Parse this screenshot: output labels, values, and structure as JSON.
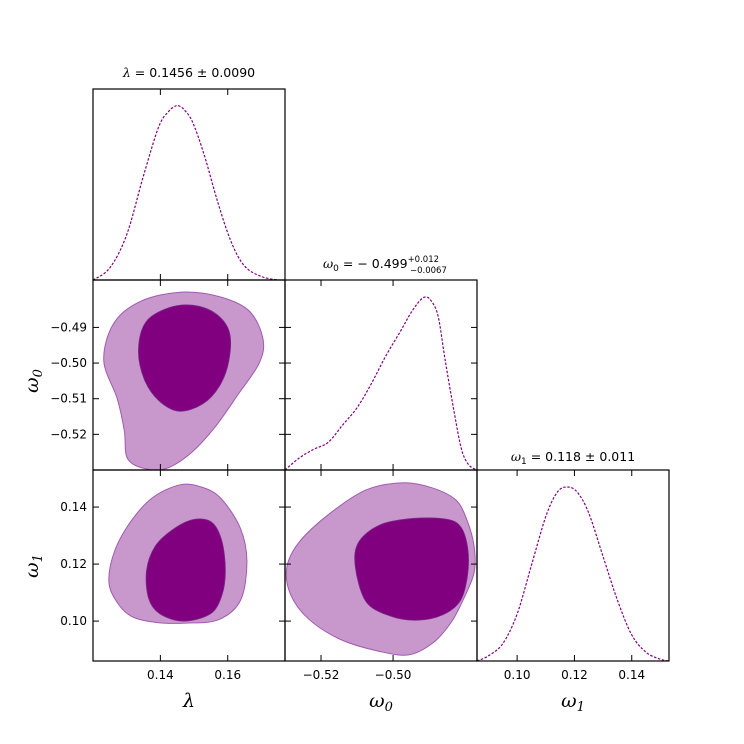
{
  "chart_data": {
    "type": "triangle-corner-plot",
    "parameters": [
      {
        "key": "lambda",
        "label": "λ",
        "range": [
          0.12,
          0.177
        ],
        "ticks": [
          0.14,
          0.16
        ],
        "tick_labels": [
          "0.14",
          "0.16"
        ]
      },
      {
        "key": "omega0",
        "label": "ω",
        "label_sub": "0",
        "range": [
          -0.53,
          -0.4767
        ],
        "ticks": [
          -0.49,
          -0.5,
          -0.51,
          -0.52
        ],
        "tick_labels": [
          "−0.49",
          "−0.50",
          "−0.51",
          "−0.52"
        ],
        "x_ticks": [
          -0.52,
          -0.5
        ],
        "x_tick_labels": [
          "−0.52",
          "−0.50"
        ]
      },
      {
        "key": "omega1",
        "label": "ω",
        "label_sub": "1",
        "range": [
          0.086,
          0.153
        ],
        "ticks": [
          0.14,
          0.12,
          0.1
        ],
        "tick_labels": [
          "0.14",
          "0.12",
          "0.10"
        ],
        "x_ticks": [
          0.1,
          0.12,
          0.14
        ],
        "x_tick_labels": [
          "0.10",
          "0.12",
          "0.14"
        ]
      }
    ],
    "titles": [
      {
        "prefix": "λ",
        "sub": "",
        "text": " = 0.1456 ± 0.0090",
        "sup": "",
        "lower": ""
      },
      {
        "prefix": "ω",
        "sub": "0",
        "text": " = − 0.499",
        "sup": "+0.012",
        "lower": "−0.0067"
      },
      {
        "prefix": "ω",
        "sub": "1",
        "text": " = 0.118 ± 0.011",
        "sup": "",
        "lower": ""
      }
    ],
    "marginals": [
      {
        "param": "lambda",
        "x": [
          0.12,
          0.125,
          0.13,
          0.135,
          0.1395,
          0.1425,
          0.1445,
          0.1456,
          0.147,
          0.1495,
          0.153,
          0.157,
          0.161,
          0.165,
          0.17,
          0.175,
          0.177
        ],
        "density": [
          0.0,
          0.07,
          0.26,
          0.6,
          0.88,
          0.97,
          1.0,
          1.0,
          0.98,
          0.91,
          0.72,
          0.45,
          0.22,
          0.08,
          0.02,
          0.0,
          0.0
        ]
      },
      {
        "param": "omega0",
        "x": [
          -0.53,
          -0.526,
          -0.522,
          -0.518,
          -0.514,
          -0.51,
          -0.506,
          -0.502,
          -0.498,
          -0.495,
          -0.4925,
          -0.491,
          -0.4895,
          -0.4875,
          -0.4855,
          -0.483,
          -0.481,
          -0.479,
          -0.4767
        ],
        "density": [
          0.0,
          0.07,
          0.12,
          0.16,
          0.26,
          0.36,
          0.5,
          0.66,
          0.8,
          0.91,
          0.98,
          1.0,
          0.98,
          0.89,
          0.63,
          0.33,
          0.12,
          0.03,
          0.0
        ]
      },
      {
        "param": "omega1",
        "x": [
          0.086,
          0.09,
          0.095,
          0.1,
          0.105,
          0.11,
          0.114,
          0.1175,
          0.121,
          0.125,
          0.13,
          0.135,
          0.14,
          0.145,
          0.15,
          0.153
        ],
        "density": [
          0.0,
          0.03,
          0.1,
          0.27,
          0.55,
          0.83,
          0.97,
          1.0,
          0.97,
          0.85,
          0.6,
          0.35,
          0.15,
          0.05,
          0.01,
          0.0
        ]
      }
    ],
    "contours": [
      {
        "x": "lambda",
        "y": "omega0",
        "outer_68": [
          [
            0.1232,
            -0.4993
          ],
          [
            0.1262,
            -0.4888
          ],
          [
            0.1343,
            -0.4826
          ],
          [
            0.1464,
            -0.4801
          ],
          [
            0.158,
            -0.4815
          ],
          [
            0.1665,
            -0.4855
          ],
          [
            0.1705,
            -0.4934
          ],
          [
            0.1693,
            -0.5001
          ],
          [
            0.1633,
            -0.5085
          ],
          [
            0.1562,
            -0.518
          ],
          [
            0.149,
            -0.5253
          ],
          [
            0.1417,
            -0.5296
          ],
          [
            0.1353,
            -0.5296
          ],
          [
            0.1302,
            -0.5267
          ],
          [
            0.1293,
            -0.519
          ],
          [
            0.1272,
            -0.51
          ],
          [
            0.1232,
            -0.4993
          ]
        ],
        "inner_68": [
          [
            0.1335,
            -0.4963
          ],
          [
            0.1357,
            -0.4885
          ],
          [
            0.1425,
            -0.4845
          ],
          [
            0.1498,
            -0.4838
          ],
          [
            0.1565,
            -0.4862
          ],
          [
            0.1605,
            -0.4914
          ],
          [
            0.1603,
            -0.4995
          ],
          [
            0.1575,
            -0.5065
          ],
          [
            0.1525,
            -0.5115
          ],
          [
            0.1455,
            -0.5135
          ],
          [
            0.1395,
            -0.5105
          ],
          [
            0.1352,
            -0.5045
          ],
          [
            0.1335,
            -0.4963
          ]
        ]
      },
      {
        "x": "lambda",
        "y": "omega1",
        "outer_95": [
          [
            0.1265,
            0.1248
          ],
          [
            0.1312,
            0.1349
          ],
          [
            0.1377,
            0.1433
          ],
          [
            0.1459,
            0.1478
          ],
          [
            0.1525,
            0.1469
          ],
          [
            0.158,
            0.143
          ],
          [
            0.1637,
            0.1327
          ],
          [
            0.1657,
            0.121
          ],
          [
            0.1638,
            0.1073
          ],
          [
            0.1573,
            0.1005
          ],
          [
            0.1475,
            0.0993
          ],
          [
            0.1388,
            0.0995
          ],
          [
            0.1312,
            0.1018
          ],
          [
            0.1265,
            0.1078
          ],
          [
            0.1247,
            0.1146
          ],
          [
            0.1265,
            0.1248
          ]
        ],
        "inner_68": [
          [
            0.1359,
            0.1178
          ],
          [
            0.1385,
            0.1263
          ],
          [
            0.1438,
            0.1322
          ],
          [
            0.1497,
            0.1356
          ],
          [
            0.1552,
            0.1347
          ],
          [
            0.1582,
            0.1283
          ],
          [
            0.1593,
            0.1178
          ],
          [
            0.1582,
            0.1088
          ],
          [
            0.1548,
            0.1025
          ],
          [
            0.1469,
            0.1
          ],
          [
            0.1399,
            0.1025
          ],
          [
            0.1365,
            0.108
          ],
          [
            0.1359,
            0.1178
          ]
        ]
      },
      {
        "x": "omega0",
        "y": "omega1",
        "outer_95": [
          [
            -0.5295,
            0.1188
          ],
          [
            -0.526,
            0.1278
          ],
          [
            -0.5175,
            0.1378
          ],
          [
            -0.5075,
            0.146
          ],
          [
            -0.4975,
            0.1485
          ],
          [
            -0.4893,
            0.1468
          ],
          [
            -0.4826,
            0.1425
          ],
          [
            -0.4795,
            0.1355
          ],
          [
            -0.4775,
            0.1262
          ],
          [
            -0.4775,
            0.117
          ],
          [
            -0.4806,
            0.1073
          ],
          [
            -0.4839,
            0.0995
          ],
          [
            -0.4888,
            0.0925
          ],
          [
            -0.4955,
            0.0882
          ],
          [
            -0.5035,
            0.0893
          ],
          [
            -0.5145,
            0.0935
          ],
          [
            -0.5235,
            0.1008
          ],
          [
            -0.5285,
            0.1095
          ],
          [
            -0.5295,
            0.1188
          ]
        ]
      },
      {
        "x": "omega0",
        "y": "omega1",
        "inner_68": [
          [
            -0.5105,
            0.1192
          ],
          [
            -0.5095,
            0.1278
          ],
          [
            -0.5035,
            0.1338
          ],
          [
            -0.4945,
            0.136
          ],
          [
            -0.4855,
            0.1358
          ],
          [
            -0.4813,
            0.1332
          ],
          [
            -0.4793,
            0.1258
          ],
          [
            -0.4793,
            0.1163
          ],
          [
            -0.4813,
            0.1072
          ],
          [
            -0.4862,
            0.1022
          ],
          [
            -0.4933,
            0.1003
          ],
          [
            -0.5008,
            0.1018
          ],
          [
            -0.5075,
            0.1068
          ],
          [
            -0.5105,
            0.1192
          ]
        ]
      }
    ],
    "colors": {
      "outer": "#c898cc",
      "outer_edge": "#a05ab0",
      "inner": "#800080",
      "inner_edge": "#7a2a88",
      "line": "#800080"
    },
    "grid": false
  }
}
